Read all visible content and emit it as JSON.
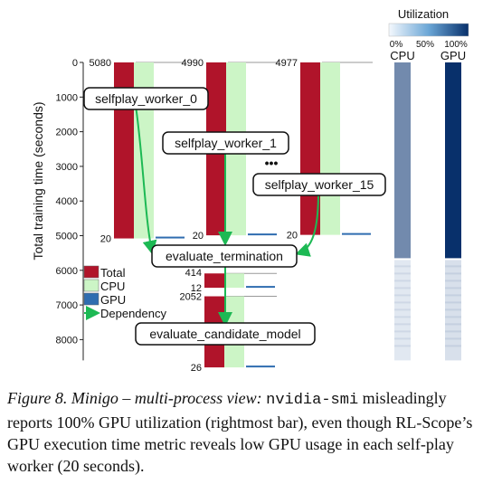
{
  "chart_data": {
    "type": "bar",
    "ylabel": "Total training time (seconds)",
    "yticks": [
      0,
      1000,
      2000,
      3000,
      4000,
      5000,
      6000,
      7000,
      8000
    ],
    "ylim": [
      0,
      8600
    ],
    "legend": {
      "placement": "lower-left",
      "items": [
        {
          "label": "Total",
          "color": "#b0142a"
        },
        {
          "label": "CPU",
          "color": "#ccf5c6"
        },
        {
          "label": "GPU",
          "color": "#2f6db0"
        },
        {
          "label": "Dependency",
          "color": "#1db954"
        }
      ]
    },
    "phases": [
      {
        "name": "selfplay_worker_0",
        "start": 0,
        "total": 5080,
        "cpu": 5080,
        "gpu": 20,
        "total_label": "5080",
        "gpu_label": "20"
      },
      {
        "name": "selfplay_worker_1",
        "start": 0,
        "total": 4990,
        "cpu": 4990,
        "gpu": 20,
        "total_label": "4990",
        "gpu_label": "20"
      },
      {
        "name": "selfplay_worker_15",
        "start": 0,
        "total": 4977,
        "cpu": 4977,
        "gpu": 20,
        "total_label": "4977",
        "gpu_label": "20"
      },
      {
        "name": "evaluate_termination",
        "start": 6090,
        "total": 414,
        "cpu": 414,
        "gpu": 12,
        "total_label": "414",
        "gpu_label": "12"
      },
      {
        "name": "evaluate_candidate_model",
        "start": 6750,
        "total": 2052,
        "cpu": 2052,
        "gpu": 26,
        "total_label": "2052",
        "gpu_label": "26"
      }
    ],
    "ellipsis": "•••",
    "utilization": {
      "title": "Utilization",
      "scale_labels": [
        "0%",
        "50%",
        "100%"
      ],
      "columns": [
        {
          "name": "CPU",
          "high_range": [
            0,
            5650
          ],
          "high_level": 0.55,
          "low_range": [
            5650,
            8600
          ],
          "low_level": 0.08
        },
        {
          "name": "GPU",
          "high_range": [
            0,
            5650
          ],
          "high_level": 1.0,
          "low_range": [
            5650,
            8600
          ],
          "low_level": 0.12
        }
      ]
    }
  },
  "caption": {
    "label": "Figure 8.",
    "title": "Minigo – multi-process view:",
    "cmd": "nvidia-smi",
    "text": "misleadingly reports 100% GPU utilization (rightmost bar), even though RL-Scope’s GPU execution time metric reveals low GPU usage in each self-play worker (20 seconds)."
  }
}
